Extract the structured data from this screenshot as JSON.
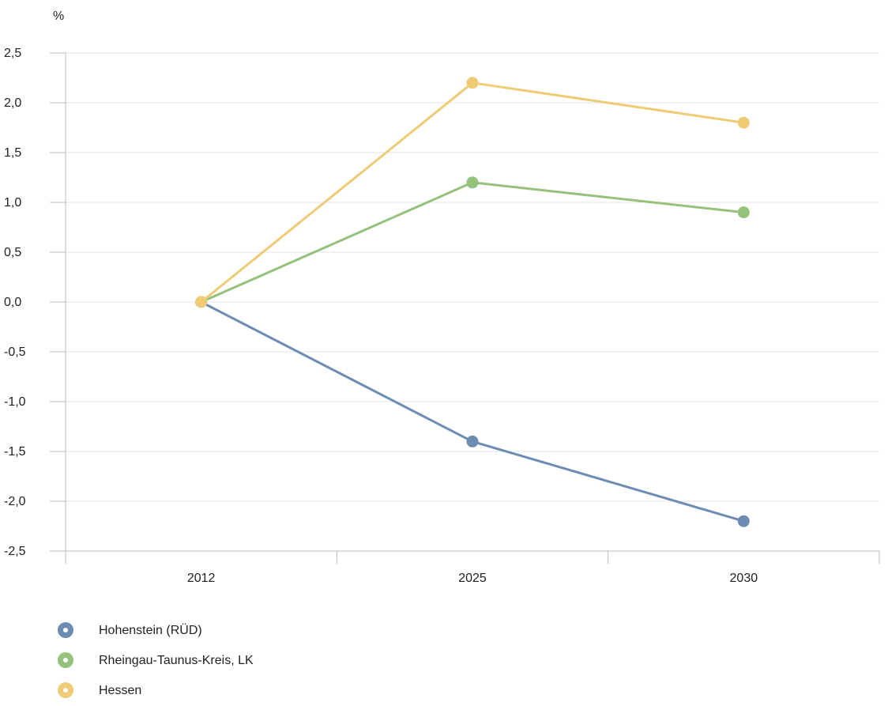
{
  "chart_data": {
    "type": "line",
    "unit_label": "%",
    "categories": [
      "2012",
      "2025",
      "2030"
    ],
    "ylim": [
      -2.5,
      2.5
    ],
    "yticks": [
      "2,5",
      "2,0",
      "1,5",
      "1,0",
      "0,5",
      "0,0",
      "-0,5",
      "-1,0",
      "-1,5",
      "-2,0",
      "-2,5"
    ],
    "ytick_values": [
      2.5,
      2.0,
      1.5,
      1.0,
      0.5,
      0.0,
      -0.5,
      -1.0,
      -1.5,
      -2.0,
      -2.5
    ],
    "grid": true,
    "legend_position": "bottom-left",
    "series": [
      {
        "name": "Hohenstein (RÜD)",
        "color": "#6c8cb3",
        "values": [
          0.0,
          -1.4,
          -2.2
        ]
      },
      {
        "name": "Rheingau-Taunus-Kreis, LK",
        "color": "#95c27a",
        "values": [
          0.0,
          1.2,
          0.9
        ]
      },
      {
        "name": "Hessen",
        "color": "#eecb74",
        "values": [
          0.0,
          2.2,
          1.8
        ]
      }
    ]
  }
}
